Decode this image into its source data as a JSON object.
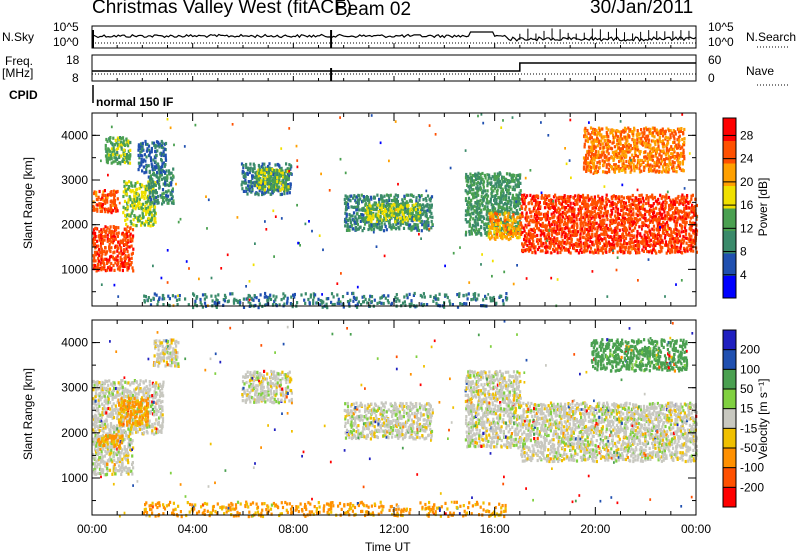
{
  "header": {
    "station": "Christmas Valley West (fitACF)",
    "beam": "Beam 02",
    "date": "30/Jan/2011"
  },
  "top_panel": {
    "nsky_label": "N.Sky",
    "nsearch_label": "N.Search",
    "left_tick_top": "10^5",
    "left_tick_bottom": "10^0",
    "right_tick_top": "10^5",
    "right_tick_bottom": "10^0",
    "freq_label": "Freq.",
    "freq_unit": "[MHz]",
    "freq_tick_top": "18",
    "freq_tick_bottom": "8",
    "nave_label": "Nave",
    "nave_tick_top": "60",
    "nave_tick_bottom": "0",
    "cpid_label": "CPID",
    "cpid_value": "normal 150 IF"
  },
  "colors": {
    "power_scale": [
      "#0000ff",
      "#2050b0",
      "#3a8a6a",
      "#4aa050",
      "#f0e000",
      "#ffa000",
      "#ff5000",
      "#ff0000"
    ],
    "velocity_scale": [
      "#2020c0",
      "#2050b0",
      "#4aa050",
      "#80d040",
      "#c8c8c0",
      "#f0c000",
      "#ff9000",
      "#ff5000",
      "#ff0000"
    ]
  },
  "chart_data": [
    {
      "type": "heatmap",
      "name": "power",
      "xlabel": "",
      "ylabel": "Slant Range [km]",
      "yticks": [
        "1000",
        "2000",
        "3000",
        "4000"
      ],
      "ylim": [
        180,
        4500
      ],
      "colorbar_label": "Power [dB]",
      "colorbar_ticks": [
        "4",
        "8",
        "12",
        "16",
        "20",
        "24",
        "28"
      ],
      "colorbar_range": [
        0,
        31
      ],
      "regions": [
        {
          "t0": 0.0,
          "t1": 1.6,
          "r0": 1000,
          "r1": 2000,
          "v": 27
        },
        {
          "t0": 0.0,
          "t1": 1.0,
          "r0": 2300,
          "r1": 2800,
          "v": 26
        },
        {
          "t0": 1.2,
          "t1": 2.5,
          "r0": 2000,
          "r1": 3000,
          "v": 16
        },
        {
          "t0": 2.2,
          "t1": 3.2,
          "r0": 2500,
          "r1": 3300,
          "v": 10
        },
        {
          "t0": 1.8,
          "t1": 2.9,
          "r0": 3200,
          "r1": 3900,
          "v": 8
        },
        {
          "t0": 0.5,
          "t1": 1.5,
          "r0": 3400,
          "r1": 4000,
          "v": 14
        },
        {
          "t0": 5.9,
          "t1": 7.9,
          "r0": 2700,
          "r1": 3400,
          "v": 9
        },
        {
          "t0": 6.5,
          "t1": 7.8,
          "r0": 2800,
          "r1": 3300,
          "v": 15
        },
        {
          "t0": 10.0,
          "t1": 13.5,
          "r0": 1900,
          "r1": 2700,
          "v": 10
        },
        {
          "t0": 10.8,
          "t1": 13.0,
          "r0": 2100,
          "r1": 2500,
          "v": 16
        },
        {
          "t0": 14.8,
          "t1": 17.0,
          "r0": 1800,
          "r1": 3200,
          "v": 12
        },
        {
          "t0": 15.7,
          "t1": 17.0,
          "r0": 1700,
          "r1": 2300,
          "v": 22
        },
        {
          "t0": 17.0,
          "t1": 24.0,
          "r0": 1400,
          "r1": 2700,
          "v": 27
        },
        {
          "t0": 19.5,
          "t1": 23.5,
          "r0": 3200,
          "r1": 4200,
          "v": 24
        },
        {
          "t0": 2.0,
          "t1": 16.5,
          "r0": 180,
          "r1": 500,
          "v": 9
        }
      ]
    },
    {
      "type": "heatmap",
      "name": "velocity",
      "xlabel": "Time UT",
      "ylabel": "Slant Range [km]",
      "xticks": [
        "00:00",
        "04:00",
        "08:00",
        "12:00",
        "16:00",
        "20:00",
        "00:00"
      ],
      "xlim": [
        0,
        24
      ],
      "yticks": [
        "1000",
        "2000",
        "3000",
        "4000"
      ],
      "ylim": [
        180,
        4500
      ],
      "colorbar_label": "Velocity [m s⁻¹]",
      "colorbar_ticks": [
        "200",
        "100",
        "50",
        "15",
        "-15",
        "-50",
        "-100",
        "-200"
      ],
      "regions": [
        {
          "t0": 0.0,
          "t1": 1.6,
          "r0": 1100,
          "r1": 2000,
          "v": 0
        },
        {
          "t0": 0.0,
          "t1": 2.8,
          "r0": 2000,
          "r1": 3200,
          "v": 0
        },
        {
          "t0": 1.0,
          "t1": 2.2,
          "r0": 2200,
          "r1": 2800,
          "v": -40
        },
        {
          "t0": 0.2,
          "t1": 1.2,
          "r0": 1700,
          "r1": 2000,
          "v": -40
        },
        {
          "t0": 2.4,
          "t1": 3.4,
          "r0": 3500,
          "r1": 4100,
          "v": 0
        },
        {
          "t0": 5.9,
          "t1": 7.9,
          "r0": 2700,
          "r1": 3400,
          "v": 0
        },
        {
          "t0": 10.0,
          "t1": 13.5,
          "r0": 1900,
          "r1": 2700,
          "v": 0
        },
        {
          "t0": 14.8,
          "t1": 17.0,
          "r0": 1700,
          "r1": 3400,
          "v": 0
        },
        {
          "t0": 17.0,
          "t1": 24.0,
          "r0": 1400,
          "r1": 2700,
          "v": 0
        },
        {
          "t0": 19.8,
          "t1": 23.6,
          "r0": 3400,
          "r1": 4100,
          "v": 50
        },
        {
          "t0": 2.0,
          "t1": 16.5,
          "r0": 180,
          "r1": 500,
          "v": -40
        }
      ]
    }
  ]
}
